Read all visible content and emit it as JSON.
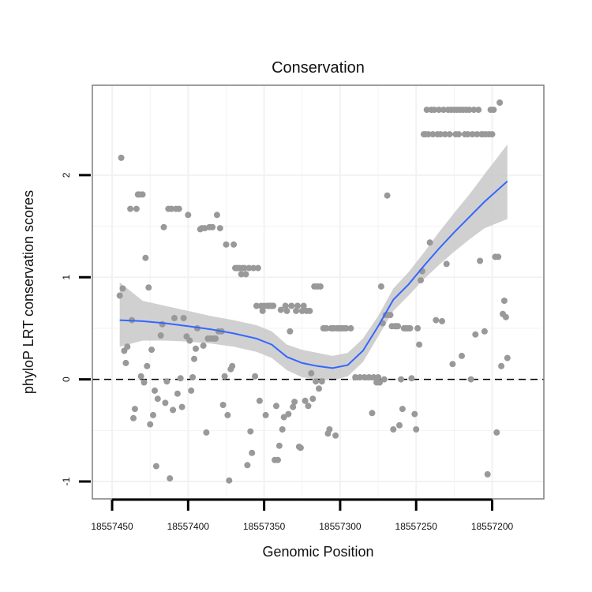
{
  "chart_data": {
    "type": "scatter",
    "title": "Conservation",
    "xlabel": "Genomic Position",
    "ylabel": "phyloP LRT conservation scores",
    "x_reversed": true,
    "xlim": [
      18557166,
      18557463
    ],
    "ylim": [
      -1.17,
      2.88
    ],
    "x_ticks": [
      18557450,
      18557400,
      18557350,
      18557300,
      18557250,
      18557200
    ],
    "y_ticks": [
      -1,
      0,
      1,
      2
    ],
    "reference_line": {
      "y": 0,
      "style": "dashed"
    },
    "grid": true,
    "colors": {
      "points": "#999999",
      "smooth_line": "#3366ff",
      "confidence_band": "#c8c8c8",
      "panel_border": "#7f7f7f",
      "grid": "#f2f2f2"
    },
    "series": [
      {
        "name": "observed scores",
        "points": [
          [
            18557445,
            0.82
          ],
          [
            18557444,
            2.17
          ],
          [
            18557443,
            0.89
          ],
          [
            18557442,
            0.28
          ],
          [
            18557441,
            0.16
          ],
          [
            18557440,
            0.32
          ],
          [
            18557438,
            1.67
          ],
          [
            18557437,
            0.58
          ],
          [
            18557436,
            -0.38
          ],
          [
            18557435,
            -0.29
          ],
          [
            18557434,
            1.67
          ],
          [
            18557433,
            1.81
          ],
          [
            18557432,
            1.81
          ],
          [
            18557431,
            0.03
          ],
          [
            18557430,
            1.81
          ],
          [
            18557429,
            -0.03
          ],
          [
            18557428,
            1.19
          ],
          [
            18557427,
            0.13
          ],
          [
            18557426,
            0.9
          ],
          [
            18557425,
            -0.44
          ],
          [
            18557424,
            0.29
          ],
          [
            18557423,
            -0.35
          ],
          [
            18557422,
            -0.11
          ],
          [
            18557421,
            -0.85
          ],
          [
            18557420,
            -0.19
          ],
          [
            18557418,
            0.43
          ],
          [
            18557417,
            0.54
          ],
          [
            18557416,
            1.49
          ],
          [
            18557415,
            -0.23
          ],
          [
            18557414,
            -0.02
          ],
          [
            18557413,
            1.67
          ],
          [
            18557412,
            -0.97
          ],
          [
            18557411,
            1.67
          ],
          [
            18557410,
            -0.3
          ],
          [
            18557409,
            0.6
          ],
          [
            18557408,
            1.67
          ],
          [
            18557407,
            -0.14
          ],
          [
            18557406,
            1.67
          ],
          [
            18557405,
            0.01
          ],
          [
            18557404,
            -0.27
          ],
          [
            18557403,
            0.6
          ],
          [
            18557401,
            0.42
          ],
          [
            18557400,
            1.61
          ],
          [
            18557399,
            0.38
          ],
          [
            18557398,
            -0.11
          ],
          [
            18557397,
            0.02
          ],
          [
            18557396,
            0.2
          ],
          [
            18557395,
            0.3
          ],
          [
            18557394,
            0.5
          ],
          [
            18557392,
            1.47
          ],
          [
            18557391,
            1.48
          ],
          [
            18557390,
            0.33
          ],
          [
            18557389,
            1.48
          ],
          [
            18557388,
            -0.52
          ],
          [
            18557387,
            0.4
          ],
          [
            18557386,
            1.49
          ],
          [
            18557385,
            0.4
          ],
          [
            18557384,
            1.49
          ],
          [
            18557383,
            0.4
          ],
          [
            18557382,
            0.4
          ],
          [
            18557381,
            1.61
          ],
          [
            18557380,
            0.47
          ],
          [
            18557379,
            1.48
          ],
          [
            18557378,
            0.47
          ],
          [
            18557377,
            -0.25
          ],
          [
            18557376,
            0.03
          ],
          [
            18557375,
            1.32
          ],
          [
            18557374,
            -0.35
          ],
          [
            18557373,
            -0.99
          ],
          [
            18557372,
            0.1
          ],
          [
            18557371,
            0.13
          ],
          [
            18557370,
            1.32
          ],
          [
            18557369,
            1.09
          ],
          [
            18557368,
            1.09
          ],
          [
            18557367,
            1.09
          ],
          [
            18557366,
            1.09
          ],
          [
            18557365,
            1.03
          ],
          [
            18557364,
            1.09
          ],
          [
            18557363,
            1.09
          ],
          [
            18557362,
            1.03
          ],
          [
            18557361,
            -0.84
          ],
          [
            18557360,
            1.09
          ],
          [
            18557359,
            -0.51
          ],
          [
            18557358,
            -0.72
          ],
          [
            18557357,
            1.09
          ],
          [
            18557356,
            0.03
          ],
          [
            18557355,
            0.72
          ],
          [
            18557354,
            1.09
          ],
          [
            18557353,
            -0.21
          ],
          [
            18557352,
            0.72
          ],
          [
            18557351,
            0.67
          ],
          [
            18557350,
            0.72
          ],
          [
            18557349,
            -0.35
          ],
          [
            18557348,
            0.72
          ],
          [
            18557347,
            0.72
          ],
          [
            18557346,
            0.72
          ],
          [
            18557345,
            0.72
          ],
          [
            18557344,
            0.72
          ],
          [
            18557343,
            -0.79
          ],
          [
            18557342,
            -0.26
          ],
          [
            18557341,
            -0.79
          ],
          [
            18557340,
            -0.65
          ],
          [
            18557339,
            0.68
          ],
          [
            18557338,
            -0.49
          ],
          [
            18557337,
            -0.37
          ],
          [
            18557336,
            0.72
          ],
          [
            18557335,
            0.67
          ],
          [
            18557334,
            -0.34
          ],
          [
            18557333,
            0.47
          ],
          [
            18557332,
            0.72
          ],
          [
            18557331,
            -0.27
          ],
          [
            18557330,
            -0.22
          ],
          [
            18557329,
            0.67
          ],
          [
            18557328,
            0.72
          ],
          [
            18557327,
            -0.66
          ],
          [
            18557326,
            -0.67
          ],
          [
            18557325,
            0.67
          ],
          [
            18557324,
            0.72
          ],
          [
            18557323,
            -0.21
          ],
          [
            18557322,
            0.67
          ],
          [
            18557321,
            -0.26
          ],
          [
            18557320,
            0.67
          ],
          [
            18557319,
            0.06
          ],
          [
            18557318,
            -0.19
          ],
          [
            18557317,
            0.91
          ],
          [
            18557316,
            -0.02
          ],
          [
            18557315,
            0.91
          ],
          [
            18557314,
            -0.09
          ],
          [
            18557313,
            0.91
          ],
          [
            18557312,
            -0.02
          ],
          [
            18557311,
            0.5
          ],
          [
            18557310,
            0.5
          ],
          [
            18557309,
            0.5
          ],
          [
            18557308,
            -0.53
          ],
          [
            18557307,
            -0.49
          ],
          [
            18557306,
            0.5
          ],
          [
            18557305,
            0.5
          ],
          [
            18557304,
            0.5
          ],
          [
            18557303,
            -0.55
          ],
          [
            18557302,
            0.5
          ],
          [
            18557301,
            0.5
          ],
          [
            18557300,
            0.5
          ],
          [
            18557299,
            0.5
          ],
          [
            18557298,
            0.5
          ],
          [
            18557297,
            0.5
          ],
          [
            18557296,
            0.5
          ],
          [
            18557293,
            0.5
          ],
          [
            18557290,
            0.02
          ],
          [
            18557287,
            0.02
          ],
          [
            18557284,
            0.02
          ],
          [
            18557281,
            0.02
          ],
          [
            18557279,
            -0.33
          ],
          [
            18557278,
            0.02
          ],
          [
            18557276,
            -0.03
          ],
          [
            18557275,
            0.02
          ],
          [
            18557274,
            -0.03
          ],
          [
            18557273,
            0.91
          ],
          [
            18557272,
            0.55
          ],
          [
            18557271,
            0.0
          ],
          [
            18557270,
            0.63
          ],
          [
            18557269,
            1.8
          ],
          [
            18557268,
            0.63
          ],
          [
            18557267,
            0.63
          ],
          [
            18557266,
            0.52
          ],
          [
            18557265,
            -0.49
          ],
          [
            18557264,
            0.52
          ],
          [
            18557263,
            0.52
          ],
          [
            18557262,
            0.52
          ],
          [
            18557261,
            -0.45
          ],
          [
            18557260,
            0.0
          ],
          [
            18557259,
            -0.29
          ],
          [
            18557258,
            0.5
          ],
          [
            18557257,
            0.5
          ],
          [
            18557256,
            0.5
          ],
          [
            18557255,
            0.5
          ],
          [
            18557254,
            0.5
          ],
          [
            18557253,
            0.01
          ],
          [
            18557251,
            -0.34
          ],
          [
            18557250,
            -0.49
          ],
          [
            18557249,
            0.5
          ],
          [
            18557248,
            0.34
          ],
          [
            18557247,
            0.97
          ],
          [
            18557246,
            1.06
          ],
          [
            18557245,
            2.4
          ],
          [
            18557244,
            2.4
          ],
          [
            18557243,
            2.64
          ],
          [
            18557242,
            2.4
          ],
          [
            18557241,
            1.34
          ],
          [
            18557240,
            2.64
          ],
          [
            18557239,
            2.4
          ],
          [
            18557238,
            2.64
          ],
          [
            18557237,
            0.58
          ],
          [
            18557236,
            2.4
          ],
          [
            18557235,
            2.64
          ],
          [
            18557234,
            2.4
          ],
          [
            18557233,
            0.57
          ],
          [
            18557232,
            2.64
          ],
          [
            18557231,
            2.4
          ],
          [
            18557230,
            1.13
          ],
          [
            18557229,
            2.64
          ],
          [
            18557228,
            2.4
          ],
          [
            18557227,
            2.64
          ],
          [
            18557226,
            0.15
          ],
          [
            18557225,
            2.64
          ],
          [
            18557224,
            2.4
          ],
          [
            18557223,
            2.64
          ],
          [
            18557222,
            2.4
          ],
          [
            18557221,
            2.64
          ],
          [
            18557220,
            0.23
          ],
          [
            18557219,
            2.64
          ],
          [
            18557218,
            2.4
          ],
          [
            18557217,
            2.64
          ],
          [
            18557216,
            2.4
          ],
          [
            18557215,
            2.64
          ],
          [
            18557214,
            0.0
          ],
          [
            18557213,
            2.4
          ],
          [
            18557212,
            2.64
          ],
          [
            18557211,
            0.44
          ],
          [
            18557210,
            2.4
          ],
          [
            18557209,
            2.64
          ],
          [
            18557208,
            1.16
          ],
          [
            18557207,
            2.4
          ],
          [
            18557206,
            2.4
          ],
          [
            18557205,
            0.47
          ],
          [
            18557204,
            2.4
          ],
          [
            18557203,
            -0.93
          ],
          [
            18557202,
            2.4
          ],
          [
            18557201,
            2.64
          ],
          [
            18557200,
            2.4
          ],
          [
            18557199,
            2.64
          ],
          [
            18557198,
            1.2
          ],
          [
            18557197,
            -0.52
          ],
          [
            18557196,
            1.2
          ],
          [
            18557195,
            2.71
          ],
          [
            18557194,
            0.13
          ],
          [
            18557193,
            0.64
          ],
          [
            18557192,
            0.77
          ],
          [
            18557191,
            0.61
          ],
          [
            18557190,
            0.21
          ]
        ]
      },
      {
        "name": "smoothed trend",
        "x": [
          18557445,
          18557430,
          18557415,
          18557400,
          18557385,
          18557370,
          18557355,
          18557345,
          18557335,
          18557325,
          18557315,
          18557305,
          18557295,
          18557285,
          18557275,
          18557265,
          18557255,
          18557245,
          18557235,
          18557225,
          18557215,
          18557205,
          18557190
        ],
        "values": [
          0.58,
          0.57,
          0.55,
          0.52,
          0.49,
          0.45,
          0.4,
          0.34,
          0.22,
          0.16,
          0.13,
          0.11,
          0.14,
          0.28,
          0.52,
          0.78,
          0.93,
          1.11,
          1.28,
          1.44,
          1.59,
          1.74,
          1.94
        ],
        "lower": [
          0.32,
          0.38,
          0.38,
          0.37,
          0.35,
          0.32,
          0.27,
          0.21,
          0.09,
          0.02,
          0.0,
          -0.01,
          0.03,
          0.17,
          0.42,
          0.67,
          0.82,
          0.98,
          1.12,
          1.25,
          1.37,
          1.48,
          1.57
        ],
        "upper": [
          0.95,
          0.77,
          0.72,
          0.67,
          0.62,
          0.58,
          0.53,
          0.47,
          0.34,
          0.29,
          0.26,
          0.23,
          0.26,
          0.4,
          0.62,
          0.89,
          1.05,
          1.24,
          1.44,
          1.63,
          1.81,
          2.01,
          2.3
        ]
      }
    ]
  }
}
